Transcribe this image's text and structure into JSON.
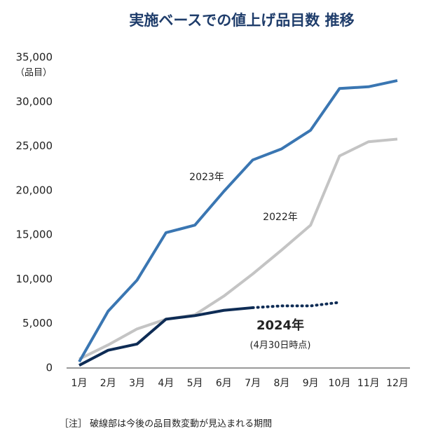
{
  "chart_data": {
    "type": "line",
    "title": "実施ベースでの値上げ品目数 推移",
    "y_unit_label": "（品目）",
    "categories": [
      "1月",
      "2月",
      "3月",
      "4月",
      "5月",
      "6月",
      "7月",
      "8月",
      "9月",
      "10月",
      "11月",
      "12月"
    ],
    "ylim": [
      0,
      35000
    ],
    "yticks": [
      0,
      {
        "value": 5000,
        "label": "5,000"
      },
      {
        "value": 10000,
        "label": "10,000"
      },
      {
        "value": 15000,
        "label": "15,000"
      },
      {
        "value": 20000,
        "label": "20,000"
      },
      {
        "value": 25000,
        "label": "25,000"
      },
      {
        "value": 30000,
        "label": "30,000"
      },
      {
        "value": 35000,
        "label": "35,000"
      }
    ],
    "grid": false,
    "series": [
      {
        "name": "2022年",
        "color": "#c4c4c4",
        "values": [
          1000,
          2600,
          4400,
          5500,
          6000,
          8100,
          10600,
          13300,
          16100,
          23900,
          25500,
          25800
        ]
      },
      {
        "name": "2023年",
        "color": "#3a76b2",
        "values": [
          700,
          6400,
          9900,
          15250,
          16100,
          19900,
          23450,
          24700,
          26800,
          31500,
          31700,
          32400
        ]
      },
      {
        "name": "2024年",
        "color": "#0e2c55",
        "values": [
          300,
          2000,
          2700,
          5500,
          5900,
          6500,
          6800,
          7000,
          7000,
          7400,
          null,
          null
        ],
        "dotted_from_category": "7月",
        "note": "(4月30日時点)"
      }
    ],
    "footnote": "［注］ 破線部は今後の品目数変動が見込まれる期間"
  }
}
